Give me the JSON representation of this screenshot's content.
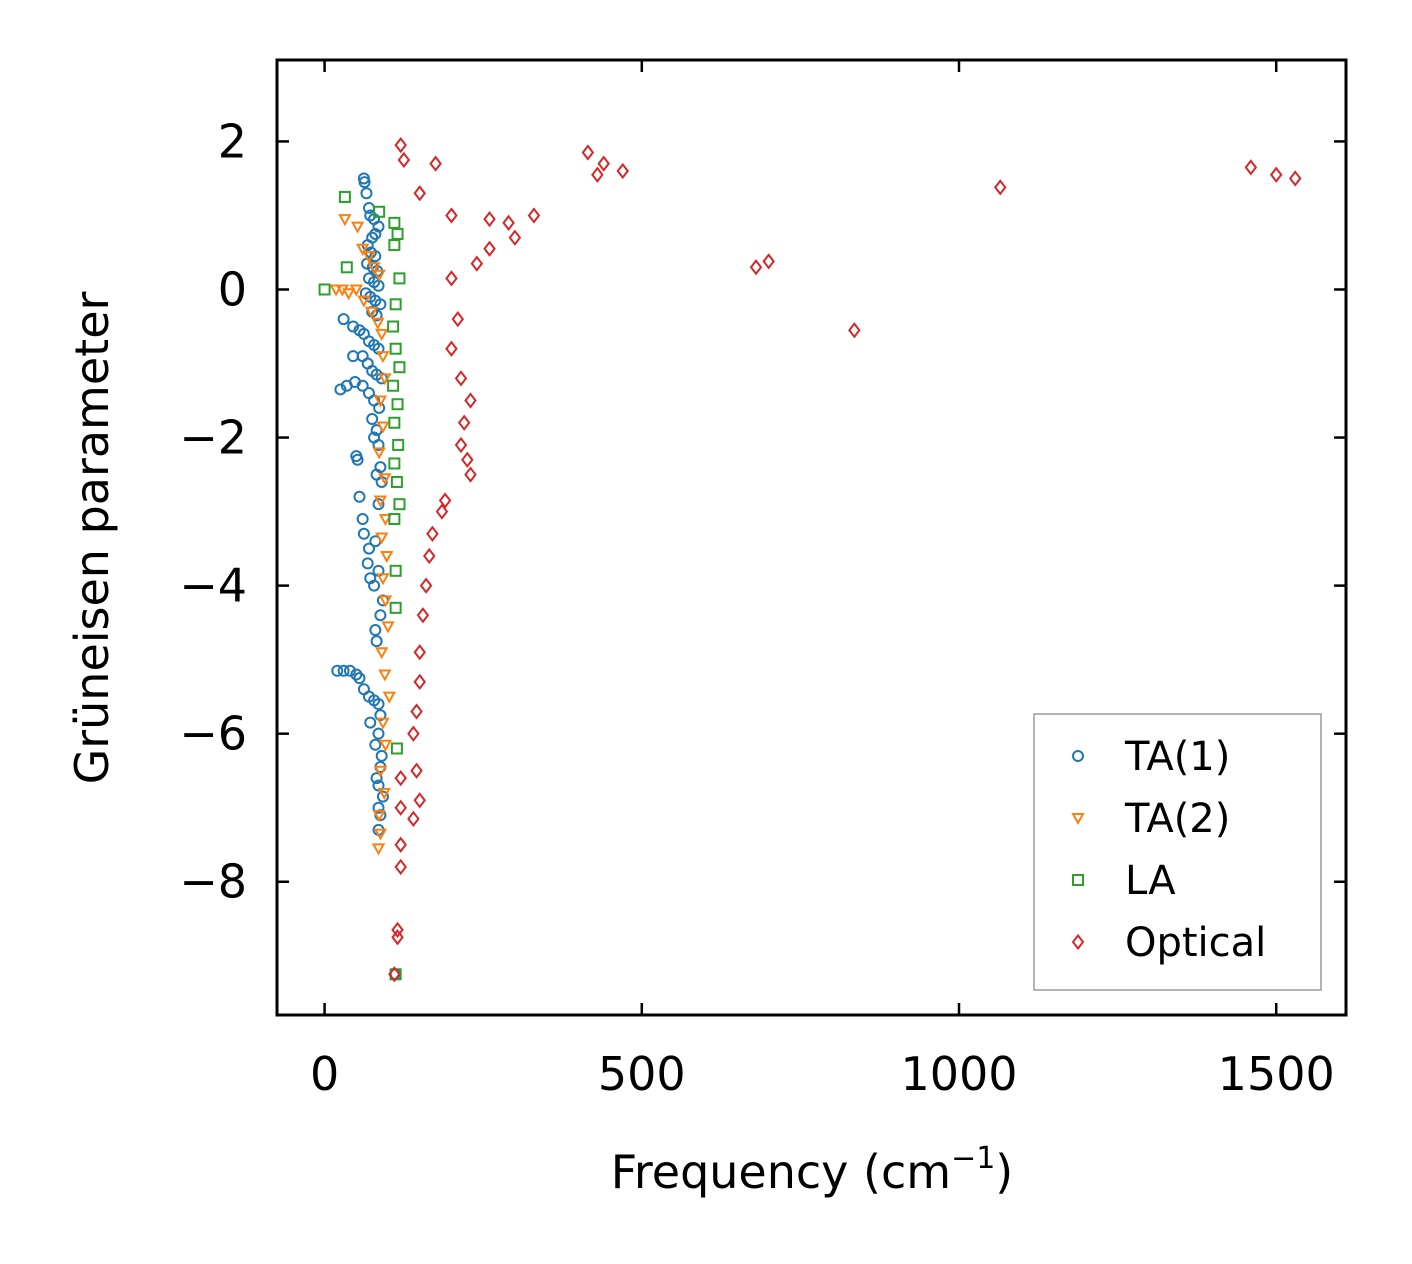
{
  "chart_data": {
    "type": "scatter",
    "title": "",
    "xlabel": "Frequency (cm",
    "xlabel_sup": "−1",
    "xlabel_close": ")",
    "ylabel": "Grüneisen parameter",
    "xlim": [
      -75,
      1610
    ],
    "ylim": [
      -9.8,
      3.1
    ],
    "xticks": [
      0,
      500,
      1000,
      1500
    ],
    "xtick_labels": [
      "0",
      "500",
      "1000",
      "1500"
    ],
    "yticks": [
      2,
      0,
      -2,
      -4,
      -6,
      -8
    ],
    "ytick_labels": [
      "2",
      "0",
      "−2",
      "−4",
      "−6",
      "−8"
    ],
    "legend_position": "lower-right",
    "series": [
      {
        "name": "TA(1)",
        "marker": "circle",
        "color": "#1f77b4",
        "points": [
          [
            62,
            1.5
          ],
          [
            63,
            1.45
          ],
          [
            66,
            1.3
          ],
          [
            70,
            1.1
          ],
          [
            72,
            1.0
          ],
          [
            78,
            0.95
          ],
          [
            85,
            0.85
          ],
          [
            80,
            0.75
          ],
          [
            75,
            0.7
          ],
          [
            68,
            0.6
          ],
          [
            73,
            0.5
          ],
          [
            80,
            0.45
          ],
          [
            67,
            0.35
          ],
          [
            76,
            0.3
          ],
          [
            83,
            0.25
          ],
          [
            70,
            0.15
          ],
          [
            78,
            0.1
          ],
          [
            85,
            0.05
          ],
          [
            65,
            -0.05
          ],
          [
            72,
            -0.1
          ],
          [
            80,
            -0.15
          ],
          [
            88,
            -0.2
          ],
          [
            75,
            -0.3
          ],
          [
            82,
            -0.35
          ],
          [
            30,
            -0.4
          ],
          [
            45,
            -0.5
          ],
          [
            55,
            -0.55
          ],
          [
            62,
            -0.6
          ],
          [
            70,
            -0.7
          ],
          [
            78,
            -0.75
          ],
          [
            85,
            -0.8
          ],
          [
            60,
            -0.9
          ],
          [
            45,
            -0.9
          ],
          [
            68,
            -1.0
          ],
          [
            75,
            -1.1
          ],
          [
            82,
            -1.15
          ],
          [
            90,
            -1.2
          ],
          [
            25,
            -1.35
          ],
          [
            35,
            -1.3
          ],
          [
            48,
            -1.25
          ],
          [
            60,
            -1.3
          ],
          [
            70,
            -1.4
          ],
          [
            78,
            -1.5
          ],
          [
            86,
            -1.6
          ],
          [
            75,
            -1.75
          ],
          [
            82,
            -1.9
          ],
          [
            78,
            -2.0
          ],
          [
            85,
            -2.1
          ],
          [
            50,
            -2.25
          ],
          [
            52,
            -2.3
          ],
          [
            88,
            -2.4
          ],
          [
            82,
            -2.5
          ],
          [
            90,
            -2.6
          ],
          [
            55,
            -2.8
          ],
          [
            85,
            -2.9
          ],
          [
            60,
            -3.1
          ],
          [
            62,
            -3.3
          ],
          [
            80,
            -3.4
          ],
          [
            70,
            -3.5
          ],
          [
            68,
            -3.7
          ],
          [
            85,
            -3.8
          ],
          [
            72,
            -3.9
          ],
          [
            78,
            -4.0
          ],
          [
            92,
            -4.2
          ],
          [
            88,
            -4.4
          ],
          [
            80,
            -4.6
          ],
          [
            82,
            -4.75
          ],
          [
            20,
            -5.15
          ],
          [
            30,
            -5.15
          ],
          [
            40,
            -5.15
          ],
          [
            50,
            -5.2
          ],
          [
            55,
            -5.25
          ],
          [
            62,
            -5.4
          ],
          [
            70,
            -5.5
          ],
          [
            78,
            -5.55
          ],
          [
            85,
            -5.6
          ],
          [
            88,
            -5.75
          ],
          [
            72,
            -5.85
          ],
          [
            85,
            -6.0
          ],
          [
            80,
            -6.15
          ],
          [
            90,
            -6.3
          ],
          [
            88,
            -6.45
          ],
          [
            82,
            -6.6
          ],
          [
            85,
            -6.7
          ],
          [
            92,
            -6.85
          ],
          [
            85,
            -7.0
          ],
          [
            88,
            -7.1
          ],
          [
            85,
            -7.3
          ],
          [
            112,
            -9.25
          ]
        ]
      },
      {
        "name": "TA(2)",
        "marker": "triangle",
        "color": "#ff7f0e",
        "points": [
          [
            32,
            0.95
          ],
          [
            52,
            0.85
          ],
          [
            60,
            0.55
          ],
          [
            70,
            0.45
          ],
          [
            78,
            0.3
          ],
          [
            86,
            0.2
          ],
          [
            18,
            0.0
          ],
          [
            28,
            0.0
          ],
          [
            38,
            -0.05
          ],
          [
            50,
            0.0
          ],
          [
            62,
            -0.15
          ],
          [
            74,
            -0.3
          ],
          [
            84,
            -0.45
          ],
          [
            90,
            -0.6
          ],
          [
            92,
            -0.9
          ],
          [
            95,
            -1.2
          ],
          [
            88,
            -1.5
          ],
          [
            92,
            -1.85
          ],
          [
            86,
            -2.2
          ],
          [
            95,
            -2.55
          ],
          [
            88,
            -2.85
          ],
          [
            96,
            -3.1
          ],
          [
            90,
            -3.35
          ],
          [
            98,
            -3.6
          ],
          [
            92,
            -3.9
          ],
          [
            96,
            -4.2
          ],
          [
            100,
            -4.55
          ],
          [
            90,
            -4.9
          ],
          [
            95,
            -5.2
          ],
          [
            102,
            -5.5
          ],
          [
            92,
            -5.85
          ],
          [
            96,
            -6.15
          ],
          [
            88,
            -6.5
          ],
          [
            94,
            -6.8
          ],
          [
            86,
            -7.1
          ],
          [
            88,
            -7.35
          ],
          [
            85,
            -7.55
          ]
        ]
      },
      {
        "name": "LA",
        "marker": "square",
        "color": "#2ca02c",
        "points": [
          [
            32,
            1.25
          ],
          [
            86,
            1.05
          ],
          [
            110,
            0.9
          ],
          [
            115,
            0.75
          ],
          [
            110,
            0.6
          ],
          [
            35,
            0.3
          ],
          [
            118,
            0.15
          ],
          [
            0,
            0.0
          ],
          [
            112,
            -0.2
          ],
          [
            108,
            -0.5
          ],
          [
            112,
            -0.8
          ],
          [
            118,
            -1.05
          ],
          [
            108,
            -1.3
          ],
          [
            115,
            -1.55
          ],
          [
            110,
            -1.8
          ],
          [
            116,
            -2.1
          ],
          [
            110,
            -2.35
          ],
          [
            114,
            -2.6
          ],
          [
            118,
            -2.9
          ],
          [
            110,
            -3.1
          ],
          [
            112,
            -3.8
          ],
          [
            112,
            -4.3
          ],
          [
            114,
            -6.2
          ],
          [
            112,
            -9.25
          ]
        ]
      },
      {
        "name": "Optical",
        "marker": "diamond",
        "color": "#d62728",
        "points": [
          [
            120,
            1.95
          ],
          [
            125,
            1.75
          ],
          [
            175,
            1.7
          ],
          [
            150,
            1.3
          ],
          [
            200,
            1.0
          ],
          [
            260,
            0.95
          ],
          [
            290,
            0.9
          ],
          [
            330,
            1.0
          ],
          [
            300,
            0.7
          ],
          [
            260,
            0.55
          ],
          [
            240,
            0.35
          ],
          [
            200,
            0.15
          ],
          [
            210,
            -0.4
          ],
          [
            200,
            -0.8
          ],
          [
            215,
            -1.2
          ],
          [
            230,
            -1.5
          ],
          [
            220,
            -1.8
          ],
          [
            215,
            -2.1
          ],
          [
            225,
            -2.3
          ],
          [
            230,
            -2.5
          ],
          [
            190,
            -2.85
          ],
          [
            185,
            -3.0
          ],
          [
            170,
            -3.3
          ],
          [
            165,
            -3.6
          ],
          [
            160,
            -4.0
          ],
          [
            155,
            -4.4
          ],
          [
            150,
            -4.9
          ],
          [
            150,
            -5.3
          ],
          [
            145,
            -5.7
          ],
          [
            140,
            -6.0
          ],
          [
            145,
            -6.5
          ],
          [
            150,
            -6.9
          ],
          [
            140,
            -7.15
          ],
          [
            120,
            -6.6
          ],
          [
            120,
            -7.0
          ],
          [
            120,
            -7.5
          ],
          [
            120,
            -7.8
          ],
          [
            115,
            -8.65
          ],
          [
            115,
            -8.75
          ],
          [
            110,
            -9.25
          ],
          [
            415,
            1.85
          ],
          [
            440,
            1.7
          ],
          [
            430,
            1.55
          ],
          [
            470,
            1.6
          ],
          [
            680,
            0.3
          ],
          [
            700,
            0.38
          ],
          [
            835,
            -0.55
          ],
          [
            1065,
            1.38
          ],
          [
            1460,
            1.65
          ],
          [
            1500,
            1.55
          ],
          [
            1530,
            1.5
          ]
        ]
      }
    ]
  }
}
